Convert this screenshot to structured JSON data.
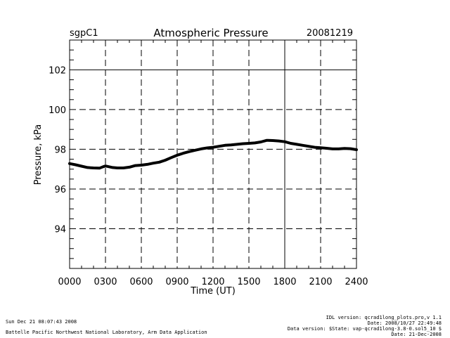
{
  "chart_data": {
    "type": "line",
    "site": "sgpC1",
    "title": "Atmospheric Pressure",
    "date": "20081219",
    "xlabel": "Time (UT)",
    "ylabel": "Pressure, kPa",
    "xlim": [
      0,
      2400
    ],
    "ylim": [
      92,
      103.5
    ],
    "xticks": [
      "0000",
      "0300",
      "0600",
      "0900",
      "1200",
      "1500",
      "1800",
      "2100",
      "2400"
    ],
    "yticks": [
      94,
      96,
      98,
      100,
      102
    ],
    "grid": true,
    "series": [
      {
        "x": [
          0,
          50,
          100,
          150,
          200,
          250,
          280,
          300,
          330,
          360,
          400,
          450,
          500,
          550,
          600,
          650,
          700,
          750,
          800,
          850,
          900,
          950,
          1000,
          1050,
          1100,
          1150,
          1200,
          1250,
          1300,
          1350,
          1400,
          1450,
          1500,
          1550,
          1600,
          1650,
          1700,
          1750,
          1800,
          1850,
          1900,
          1950,
          2000,
          2050,
          2100,
          2150,
          2200,
          2250,
          2300,
          2350,
          2400
        ],
        "values": [
          97.28,
          97.22,
          97.15,
          97.08,
          97.06,
          97.05,
          97.12,
          97.16,
          97.12,
          97.08,
          97.06,
          97.06,
          97.1,
          97.18,
          97.2,
          97.24,
          97.3,
          97.35,
          97.45,
          97.58,
          97.7,
          97.8,
          97.88,
          97.95,
          98.02,
          98.07,
          98.1,
          98.15,
          98.2,
          98.22,
          98.25,
          98.28,
          98.3,
          98.32,
          98.37,
          98.45,
          98.44,
          98.42,
          98.38,
          98.3,
          98.25,
          98.2,
          98.15,
          98.1,
          98.08,
          98.05,
          98.02,
          98.02,
          98.04,
          98.03,
          97.98
        ]
      }
    ]
  },
  "footer": {
    "timestamp": "Sun Dec 21 08:07:43 2008",
    "lab": "Battelle Pacific Northwest National Laboratory, Arm Data Application",
    "idl_version": "IDL version: qcrad1long_plots.pro,v 1.1",
    "idl_date": "Date: 2008/10/27 22:49:48",
    "data_version": "Data version: $State: vap-qcrad1long-3.8-0.sol5_10 $",
    "data_date": "Date: 21-Dec-2008"
  }
}
